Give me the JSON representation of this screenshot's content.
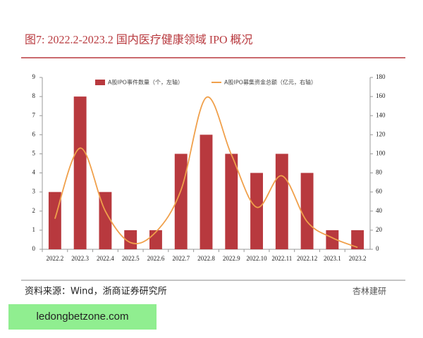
{
  "chart_data": {
    "type": "bar-line",
    "title": "图7:   2022.2-2023.2 国内医疗健康领域 IPO 概况",
    "categories": [
      "2022.2",
      "2022.3",
      "2022.4",
      "2022.5",
      "2022.6",
      "2022.7",
      "2022.8",
      "2022.9",
      "2022.10",
      "2022.11",
      "2022.12",
      "2023.1",
      "2023.2"
    ],
    "series": [
      {
        "name": "A股IPO事件数量（个，左轴）",
        "type": "bar",
        "color": "#b8393e",
        "values": [
          3,
          8,
          3,
          1,
          1,
          5,
          6,
          5,
          4,
          5,
          4,
          1,
          1
        ]
      },
      {
        "name": "A股IPO募集资金总额（亿元，右轴）",
        "type": "line",
        "axis": "y2",
        "color": "#f0a04b",
        "values": [
          32,
          106,
          40,
          7,
          18,
          62,
          159,
          99,
          44,
          77,
          29,
          12,
          2
        ]
      }
    ],
    "ylim": [
      0,
      9
    ],
    "yticks": [
      0,
      1,
      2,
      3,
      4,
      5,
      6,
      7,
      8,
      9
    ],
    "y2lim": [
      0,
      180
    ],
    "y2ticks": [
      0,
      20,
      40,
      60,
      80,
      100,
      120,
      140,
      160,
      180
    ],
    "grid": false,
    "legend": "top"
  },
  "source": "资料来源：Wind，浙商证券研究所",
  "watermark": "杏林建研",
  "banner": "ledongbetzone.com"
}
